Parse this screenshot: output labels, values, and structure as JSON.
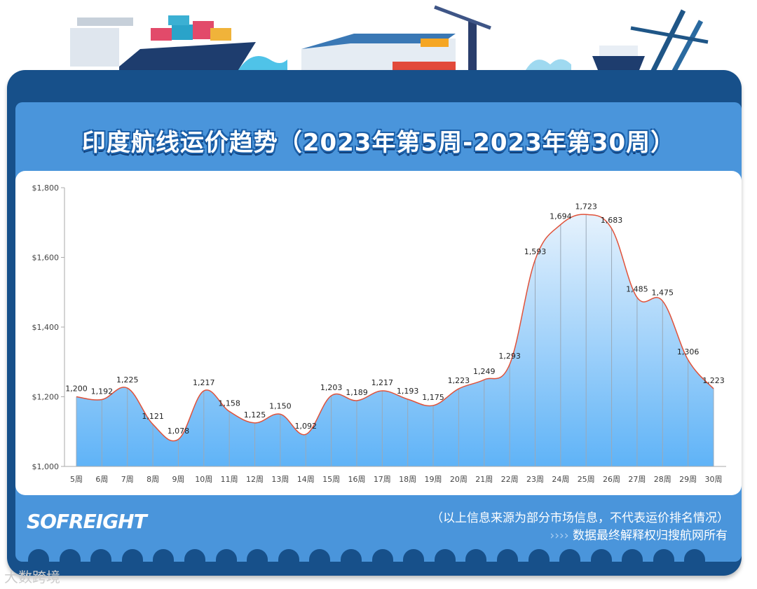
{
  "title": "印度航线运价趋势（2023年第5周-2023年第30周）",
  "footer": {
    "logo": "SOFREIGHT",
    "note": "（以上信息来源为部分市场信息，不代表运价排名情况）",
    "arrows": "››››",
    "copyright": "数据最终解释权归搜航网所有"
  },
  "watermark": "大数跨境",
  "colors": {
    "line": "#e0523a",
    "area_top": "#e6f2fd",
    "area_bottom": "#5fb3f7",
    "frame": "#17508a",
    "panel": "#4a95db"
  },
  "chart_data": {
    "type": "area",
    "title": "印度航线运价趋势（2023年第5周-2023年第30周）",
    "categories": [
      "5周",
      "6周",
      "7周",
      "8周",
      "9周",
      "10周",
      "11周",
      "12周",
      "13周",
      "14周",
      "15周",
      "16周",
      "17周",
      "18周",
      "19周",
      "20周",
      "21周",
      "22周",
      "23周",
      "24周",
      "25周",
      "26周",
      "27周",
      "28周",
      "29周",
      "30周"
    ],
    "values": [
      1200,
      1192,
      1225,
      1121,
      1078,
      1217,
      1158,
      1125,
      1150,
      1092,
      1203,
      1189,
      1217,
      1193,
      1175,
      1223,
      1249,
      1293,
      1593,
      1694,
      1723,
      1683,
      1485,
      1475,
      1306,
      1223
    ],
    "data_labels": [
      "1,200",
      "1,192",
      "1,225",
      "1,121",
      "1,078",
      "1,217",
      "1,158",
      "1,125",
      "1,150",
      "1,092",
      "1,203",
      "1,189",
      "1,217",
      "1,193",
      "1,175",
      "1,223",
      "1,249",
      "1,293",
      "1,593",
      "1,694",
      "1,723",
      "1,683",
      "1,485",
      "1,475",
      "1,306",
      "1,223"
    ],
    "ylim": [
      1000,
      1800
    ],
    "yticks": [
      "$1,000",
      "$1,200",
      "$1,400",
      "$1,600",
      "$1,800"
    ],
    "ytick_values": [
      1000,
      1200,
      1400,
      1600,
      1800
    ],
    "xlabel": "",
    "ylabel": "",
    "smooth": true,
    "grid": false,
    "legend": "none"
  }
}
